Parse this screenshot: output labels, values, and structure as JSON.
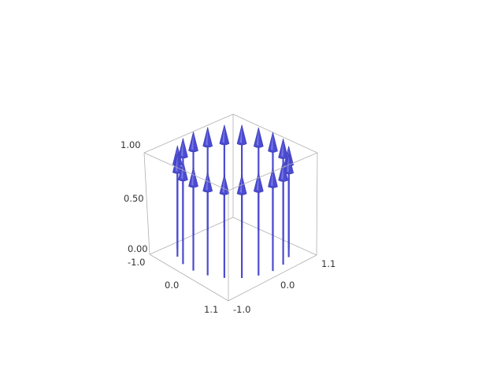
{
  "chart_data": {
    "type": "quiver3d",
    "title": "",
    "xlabel": "",
    "ylabel": "",
    "zlabel": "",
    "xlim": [
      -1.0,
      1.1
    ],
    "ylim": [
      -1.0,
      1.1
    ],
    "zlim": [
      0.0,
      1.0
    ],
    "x_tick_labels": [
      "1.1",
      "0.0",
      "-1.0"
    ],
    "y_tick_labels": [
      "1.1",
      "0.0",
      "-1.0"
    ],
    "z_tick_labels": [
      "1.00",
      "0.50",
      "0.00"
    ],
    "arrow_color": "#4b4bd2",
    "arrow_direction": [
      0,
      0,
      1
    ],
    "arrows": [
      {
        "x": 1.0,
        "y": 0.0,
        "z0": 0.0,
        "z1": 1.0
      },
      {
        "x": 0.95,
        "y": 0.31,
        "z0": 0.0,
        "z1": 1.0
      },
      {
        "x": 0.81,
        "y": 0.59,
        "z0": 0.0,
        "z1": 1.0
      },
      {
        "x": 0.59,
        "y": 0.81,
        "z0": 0.0,
        "z1": 1.0
      },
      {
        "x": 0.31,
        "y": 0.95,
        "z0": 0.0,
        "z1": 1.0
      },
      {
        "x": 0.0,
        "y": 1.0,
        "z0": 0.0,
        "z1": 1.0
      },
      {
        "x": -0.31,
        "y": 0.95,
        "z0": 0.0,
        "z1": 1.0
      },
      {
        "x": -0.59,
        "y": 0.81,
        "z0": 0.0,
        "z1": 1.0
      },
      {
        "x": -0.81,
        "y": 0.59,
        "z0": 0.0,
        "z1": 1.0
      },
      {
        "x": -0.95,
        "y": 0.31,
        "z0": 0.0,
        "z1": 1.0
      },
      {
        "x": -1.0,
        "y": 0.0,
        "z0": 0.0,
        "z1": 1.0
      },
      {
        "x": -0.95,
        "y": -0.31,
        "z0": 0.0,
        "z1": 1.0
      },
      {
        "x": -0.81,
        "y": -0.59,
        "z0": 0.0,
        "z1": 1.0
      },
      {
        "x": -0.59,
        "y": -0.81,
        "z0": 0.0,
        "z1": 1.0
      },
      {
        "x": -0.31,
        "y": -0.95,
        "z0": 0.0,
        "z1": 1.0
      },
      {
        "x": 0.0,
        "y": -1.0,
        "z0": 0.0,
        "z1": 1.0
      },
      {
        "x": 0.31,
        "y": -0.95,
        "z0": 0.0,
        "z1": 1.0
      },
      {
        "x": 0.59,
        "y": -0.81,
        "z0": 0.0,
        "z1": 1.0
      },
      {
        "x": 0.81,
        "y": -0.59,
        "z0": 0.0,
        "z1": 1.0
      },
      {
        "x": 0.95,
        "y": -0.31,
        "z0": 0.0,
        "z1": 1.0
      }
    ]
  }
}
